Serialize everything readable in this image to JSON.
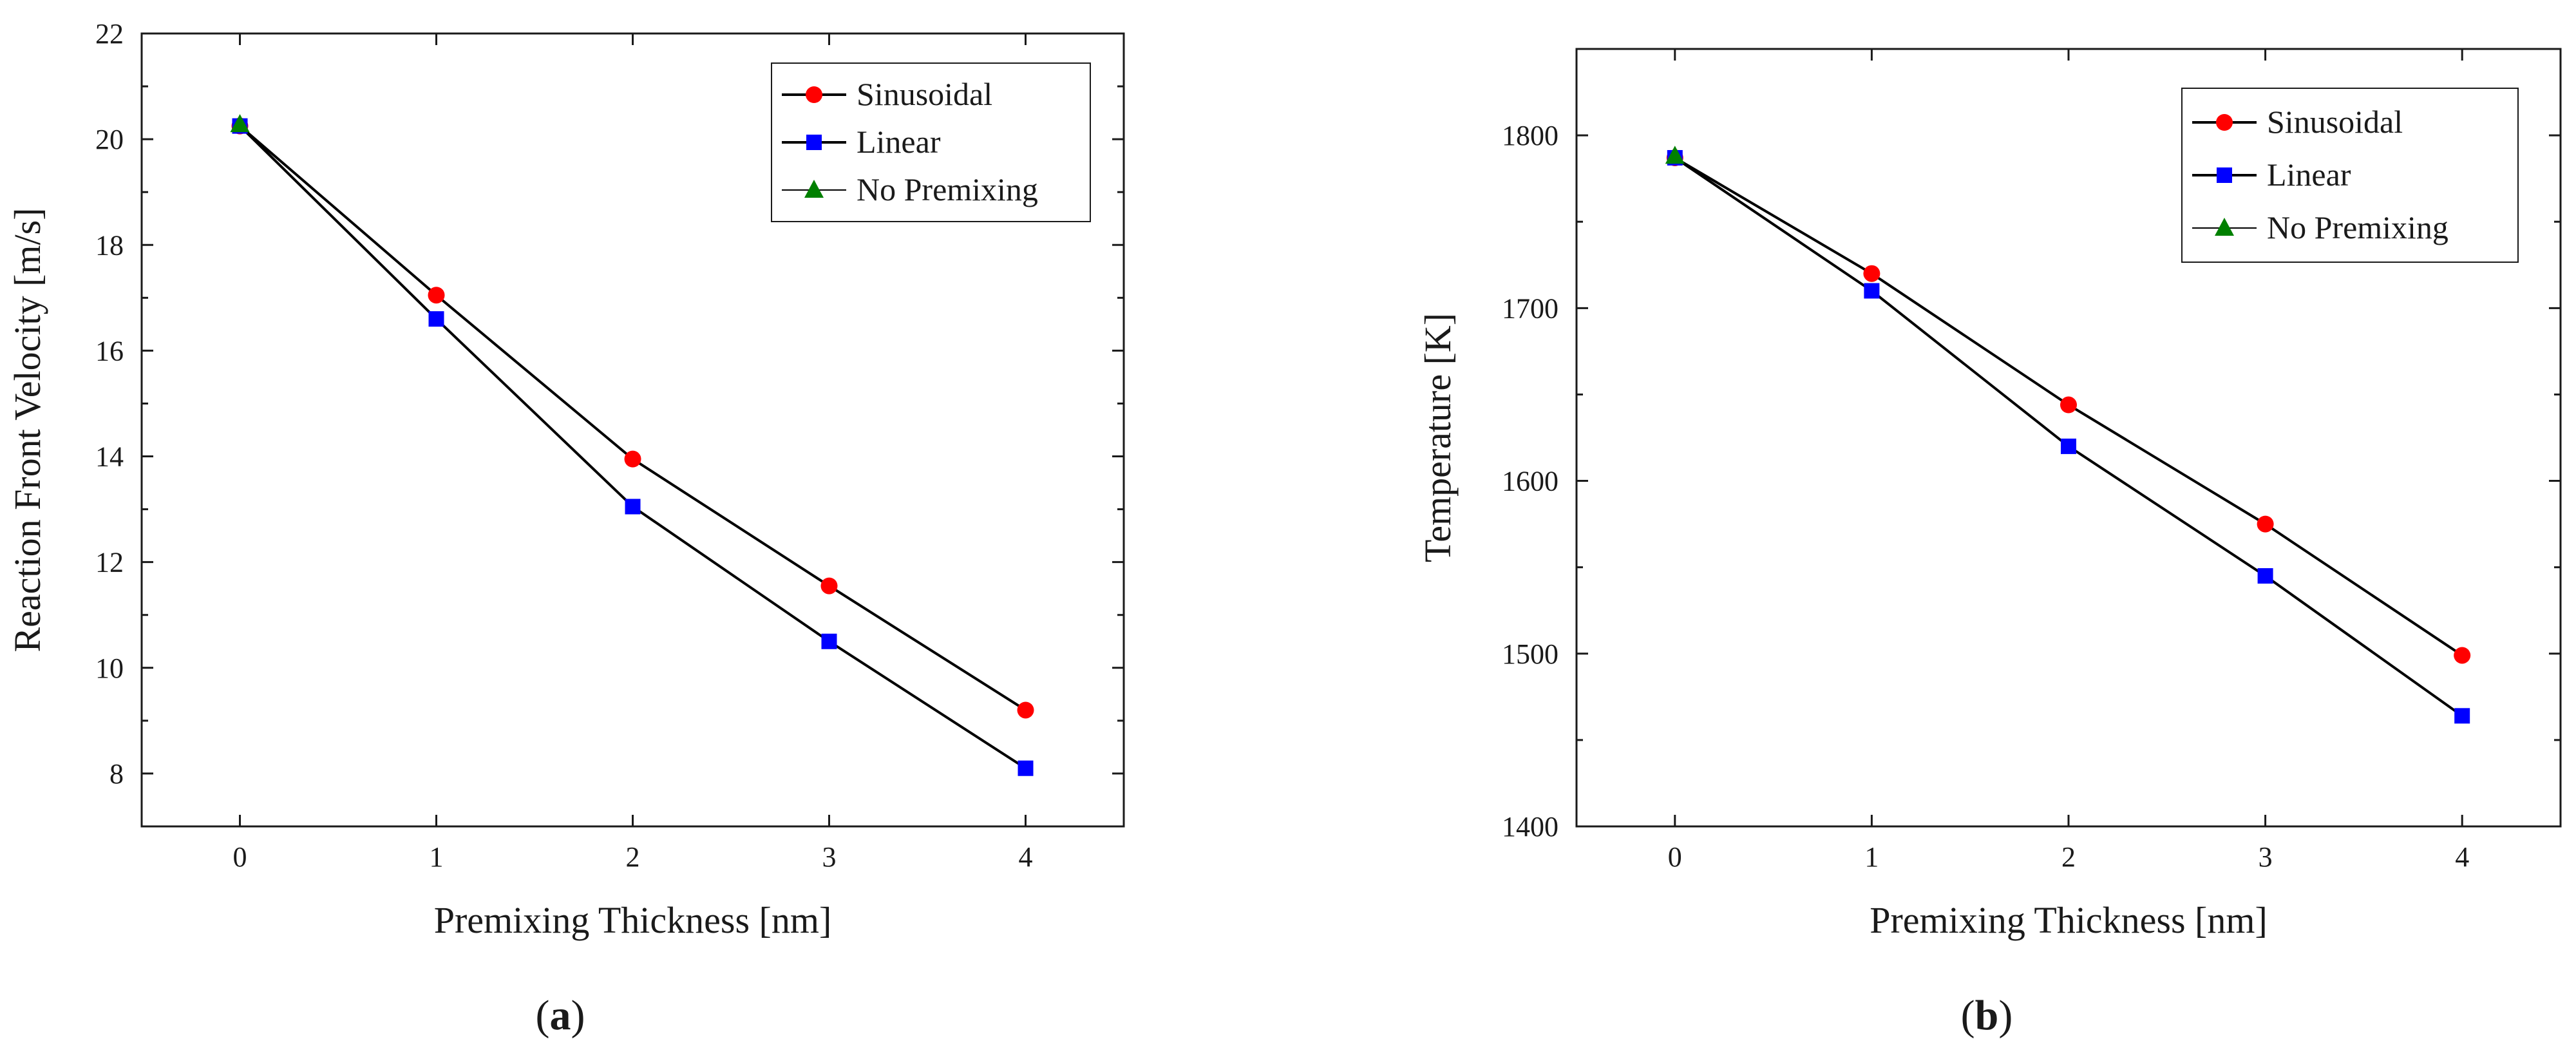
{
  "figure": {
    "caption_a": {
      "open": "(",
      "letter": "a",
      "close": ")"
    },
    "caption_b": {
      "open": "(",
      "letter": "b",
      "close": ")"
    }
  },
  "colors": {
    "axis": "#1a1a1a",
    "line": "#000000",
    "sinusoidal": "#ff0000",
    "linear": "#0000ff",
    "no_premixing": "#008000"
  },
  "chart_data": [
    {
      "id": "a",
      "type": "line",
      "title": "",
      "xlabel": "Premixing Thickness [nm]",
      "ylabel": "Reaction Front Velocity [m/s]",
      "xlim": [
        -0.5,
        4.5
      ],
      "ylim": [
        7,
        22
      ],
      "xticks": [
        0,
        1,
        2,
        3,
        4
      ],
      "yticks": [
        8,
        10,
        12,
        14,
        16,
        18,
        20,
        22
      ],
      "legend_position": "top-right",
      "grid": false,
      "series": [
        {
          "name": "Sinusoidal",
          "marker": "circle",
          "color": "#ff0000",
          "x": [
            0,
            1,
            2,
            3,
            4
          ],
          "y": [
            20.25,
            17.05,
            13.95,
            11.55,
            9.2
          ]
        },
        {
          "name": "Linear",
          "marker": "square",
          "color": "#0000ff",
          "x": [
            0,
            1,
            2,
            3,
            4
          ],
          "y": [
            20.25,
            16.6,
            13.05,
            10.5,
            8.1
          ]
        },
        {
          "name": "No Premixing",
          "marker": "triangle",
          "color": "#008000",
          "x": [
            0
          ],
          "y": [
            20.28
          ]
        }
      ]
    },
    {
      "id": "b",
      "type": "line",
      "title": "",
      "xlabel": "Premixing Thickness [nm]",
      "ylabel": "Temperature [K]",
      "xlim": [
        -0.5,
        4.5
      ],
      "ylim": [
        1400,
        1850
      ],
      "xticks": [
        0,
        1,
        2,
        3,
        4
      ],
      "yticks": [
        1400,
        1500,
        1600,
        1700,
        1800
      ],
      "legend_position": "top-right",
      "grid": false,
      "series": [
        {
          "name": "Sinusoidal",
          "marker": "circle",
          "color": "#ff0000",
          "x": [
            0,
            1,
            2,
            3,
            4
          ],
          "y": [
            1787,
            1720,
            1644,
            1575,
            1499
          ]
        },
        {
          "name": "Linear",
          "marker": "square",
          "color": "#0000ff",
          "x": [
            0,
            1,
            2,
            3,
            4
          ],
          "y": [
            1787,
            1710,
            1620,
            1545,
            1464
          ]
        },
        {
          "name": "No Premixing",
          "marker": "triangle",
          "color": "#008000",
          "x": [
            0
          ],
          "y": [
            1788
          ]
        }
      ]
    }
  ]
}
